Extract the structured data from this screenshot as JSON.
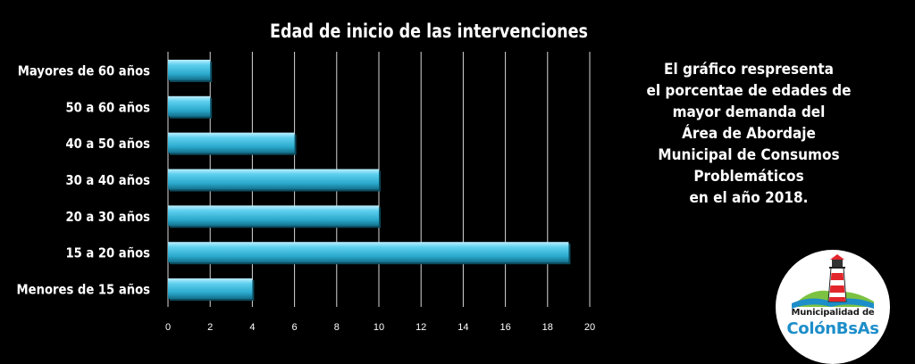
{
  "chart_data": {
    "type": "bar",
    "orientation": "horizontal",
    "title": "Edad de inicio de las intervenciones",
    "categories": [
      "Mayores de 60 años",
      "50 a 60 años",
      "40 a 50 años",
      "30 a 40 años",
      "20 a 30 años",
      "15 a 20 años",
      "Menores de 15 años"
    ],
    "values": [
      2,
      2,
      6,
      10,
      10,
      19,
      4
    ],
    "xlim": [
      0,
      20
    ],
    "xticks": [
      0,
      2,
      4,
      6,
      8,
      10,
      12,
      14,
      16,
      18,
      20
    ],
    "grid": true,
    "bar_color": "#37b8d8"
  },
  "caption": {
    "lines": [
      "El gráfico respresenta",
      "el porcentae de edades de",
      "mayor demanda del",
      "Área de Abordaje",
      "Municipal de Consumos Problemáticos",
      "en el año 2018."
    ]
  },
  "logo": {
    "line1": "Municipalidad de",
    "line2": "ColónBsAs",
    "icon": "lighthouse-icon"
  }
}
